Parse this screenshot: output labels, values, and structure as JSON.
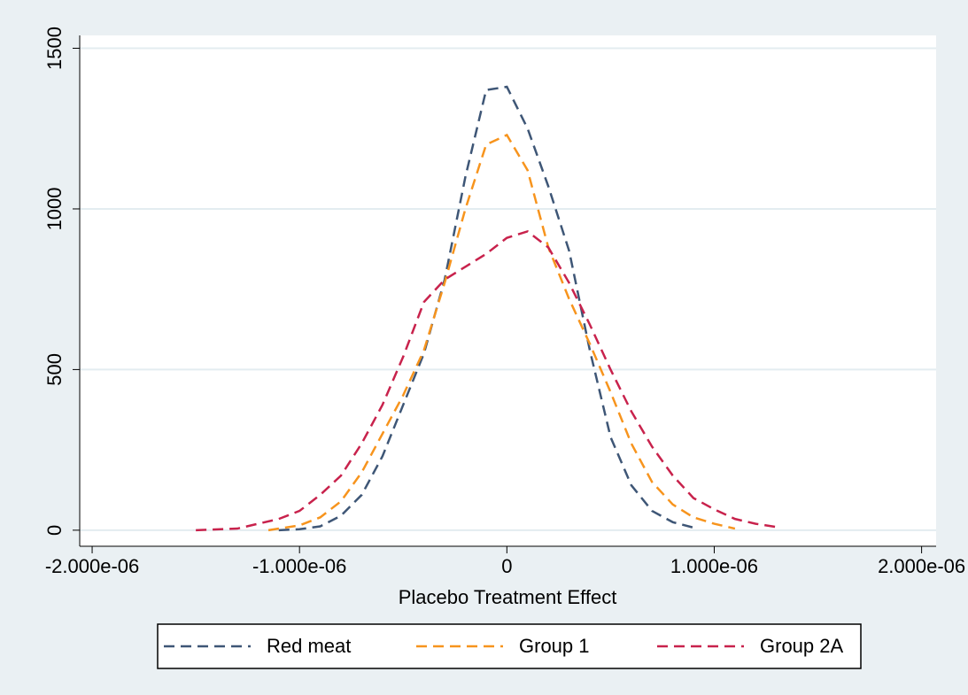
{
  "chart_data": {
    "type": "line",
    "x_label": "Placebo Treatment Effect",
    "xlim": [
      -2.06e-06,
      2.07e-06
    ],
    "ylim": [
      -50,
      1540
    ],
    "xticks": [
      {
        "value": -2e-06,
        "label": "-2.000e-06"
      },
      {
        "value": -1e-06,
        "label": "-1.000e-06"
      },
      0,
      {
        "value": 1e-06,
        "label": "1.000e-06"
      },
      {
        "value": 2e-06,
        "label": "2.000e-06"
      }
    ],
    "yticks": [
      0,
      500,
      1000,
      1500
    ],
    "grid": true,
    "legend": "bottom",
    "series": [
      {
        "name": "Red meat",
        "color": "#3e5676",
        "x": [
          -1.1e-06,
          -1e-06,
          -9e-07,
          -8e-07,
          -7e-07,
          -6e-07,
          -5e-07,
          -4e-07,
          -3e-07,
          -2e-07,
          -1e-07,
          0,
          1e-07,
          2e-07,
          3e-07,
          4e-07,
          5e-07,
          6e-07,
          7e-07,
          8e-07,
          9e-07
        ],
        "values": [
          0,
          3,
          12,
          45,
          110,
          230,
          390,
          550,
          780,
          1100,
          1370,
          1380,
          1250,
          1070,
          870,
          560,
          290,
          140,
          60,
          25,
          8
        ]
      },
      {
        "name": "Group 1",
        "color": "#f7941d",
        "x": [
          -1.15e-06,
          -1e-06,
          -9e-07,
          -8e-07,
          -7e-07,
          -6e-07,
          -5e-07,
          -4e-07,
          -3e-07,
          -2e-07,
          -1e-07,
          0,
          1e-07,
          2e-07,
          3e-07,
          4e-07,
          5e-07,
          6e-07,
          7e-07,
          8e-07,
          9e-07,
          1e-06,
          1.1e-06
        ],
        "values": [
          0,
          15,
          40,
          90,
          180,
          300,
          420,
          560,
          770,
          1000,
          1200,
          1230,
          1120,
          880,
          720,
          580,
          430,
          270,
          150,
          80,
          40,
          20,
          5
        ]
      },
      {
        "name": "Group 2A",
        "color": "#c8224c",
        "x": [
          -1.5e-06,
          -1.3e-06,
          -1.2e-06,
          -1.1e-06,
          -1e-06,
          -9e-07,
          -8e-07,
          -7e-07,
          -6e-07,
          -5e-07,
          -4e-07,
          -3e-07,
          -2e-07,
          -1e-07,
          0,
          1e-07,
          2e-07,
          3e-07,
          4e-07,
          5e-07,
          6e-07,
          7e-07,
          8e-07,
          9e-07,
          1e-06,
          1.1e-06,
          1.2e-06,
          1.3e-06
        ],
        "values": [
          0,
          5,
          20,
          35,
          60,
          110,
          170,
          270,
          390,
          540,
          710,
          780,
          820,
          860,
          910,
          930,
          880,
          770,
          640,
          500,
          370,
          260,
          170,
          100,
          65,
          35,
          20,
          10
        ]
      }
    ]
  }
}
